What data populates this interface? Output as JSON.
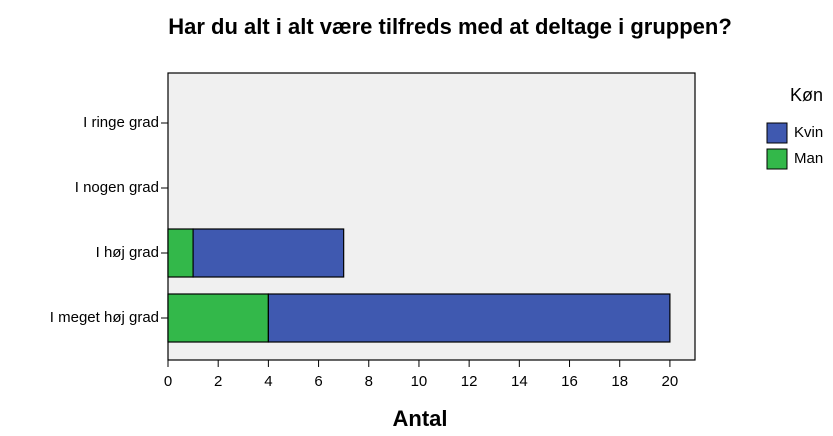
{
  "chart_data": {
    "type": "bar",
    "orientation": "horizontal",
    "stacked": true,
    "title": "Har du alt i alt være tilfreds med at deltage i gruppen?",
    "xlabel": "Antal",
    "categories": [
      "I ringe grad",
      "I nogen grad",
      "I høj grad",
      "I meget høj grad"
    ],
    "legend_title": "Køn",
    "series": [
      {
        "name": "Man",
        "color": "#33b84a",
        "values": [
          0,
          0,
          1,
          4
        ]
      },
      {
        "name": "Kvin",
        "color": "#3f59b0",
        "values": [
          0,
          0,
          6,
          16
        ]
      }
    ],
    "xlim": [
      0,
      21
    ],
    "xticks": [
      0,
      2,
      4,
      6,
      8,
      10,
      12,
      14,
      16,
      18,
      20
    ],
    "legend": "right"
  }
}
